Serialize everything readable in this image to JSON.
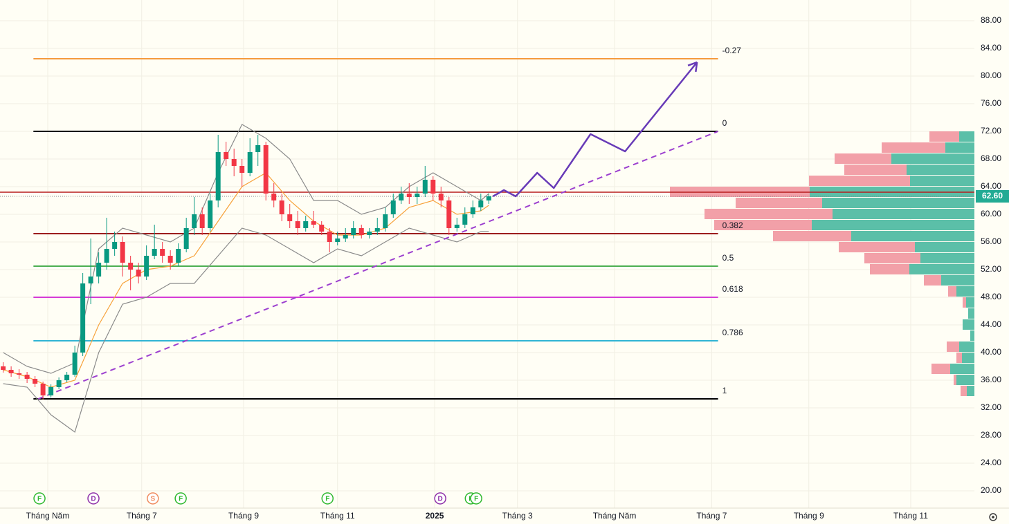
{
  "chart_data": {
    "type": "candlestick",
    "xlim": [
      0,
      612
    ],
    "ylim": [
      17.5,
      91
    ],
    "xticks": [
      {
        "value": 30,
        "label": "Tháng Năm"
      },
      {
        "value": 89,
        "label": "Tháng 7"
      },
      {
        "value": 153,
        "label": "Tháng 9"
      },
      {
        "value": 212,
        "label": "Tháng 11"
      },
      {
        "value": 273,
        "label": "2025"
      },
      {
        "value": 325,
        "label": "Tháng 3"
      },
      {
        "value": 386,
        "label": "Tháng Năm"
      },
      {
        "value": 447,
        "label": "Tháng 7"
      },
      {
        "value": 508,
        "label": "Tháng 9"
      },
      {
        "value": 572,
        "label": "Tháng 11"
      }
    ],
    "yticks": [
      {
        "value": 88,
        "label": "88.00"
      },
      {
        "value": 84,
        "label": "84.00"
      },
      {
        "value": 80,
        "label": "80.00"
      },
      {
        "value": 76,
        "label": "76.00"
      },
      {
        "value": 72,
        "label": "72.00"
      },
      {
        "value": 68,
        "label": "68.00"
      },
      {
        "value": 64,
        "label": "64.00"
      },
      {
        "value": 60,
        "label": "60.00"
      },
      {
        "value": 56,
        "label": "56.00"
      },
      {
        "value": 52,
        "label": "52.00"
      },
      {
        "value": 48,
        "label": "48.00"
      },
      {
        "value": 44,
        "label": "44.00"
      },
      {
        "value": 40,
        "label": "40.00"
      },
      {
        "value": 36,
        "label": "36.00"
      },
      {
        "value": 32,
        "label": "32.00"
      },
      {
        "value": 28,
        "label": "28.00"
      },
      {
        "value": 24,
        "label": "24.00"
      },
      {
        "value": 20,
        "label": "20.00"
      }
    ],
    "grid": true,
    "up_color": "#089981",
    "down_color": "#f23645",
    "x": [
      2,
      7,
      12,
      17,
      22,
      27,
      32,
      37,
      42,
      47,
      52,
      57,
      62,
      67,
      72,
      77,
      82,
      87,
      92,
      97,
      102,
      107,
      112,
      117,
      122,
      127,
      132,
      137,
      142,
      147,
      152,
      157,
      162,
      167,
      172,
      177,
      182,
      187,
      192,
      197,
      202,
      207,
      212,
      217,
      222,
      227,
      232,
      237,
      242,
      247,
      252,
      257,
      262,
      267,
      272,
      277,
      282,
      287,
      292,
      297,
      302,
      307
    ],
    "open": [
      38,
      37.5,
      37,
      36.8,
      36.2,
      35.5,
      33.8,
      35,
      36,
      36.8,
      40,
      50,
      51,
      53,
      55,
      56,
      53,
      52,
      51,
      54,
      55,
      54,
      53,
      55,
      58,
      60,
      58,
      62,
      69,
      68,
      67,
      66,
      69,
      70,
      63,
      62,
      60,
      59,
      58,
      59,
      58.5,
      57.5,
      56,
      56.5,
      57,
      58,
      57,
      57.5,
      58,
      60,
      62,
      63,
      62.5,
      63,
      65,
      63,
      62,
      58,
      58.5,
      60,
      61,
      62
    ],
    "high": [
      38.6,
      38,
      37.6,
      37.2,
      36.6,
      35.8,
      35.4,
      36.4,
      37.2,
      41,
      51.5,
      56.5,
      54.5,
      59.5,
      57.5,
      56.8,
      54,
      53,
      55.5,
      58.5,
      56,
      54.8,
      55.8,
      59.5,
      62.5,
      61,
      63,
      71.5,
      70.5,
      69.5,
      68,
      71,
      71.5,
      70.5,
      64.5,
      63,
      61.5,
      60.5,
      59.8,
      60.5,
      59,
      58,
      57.5,
      58,
      59,
      58.5,
      58,
      59.5,
      61,
      63,
      64,
      64.5,
      64,
      67,
      65.5,
      64,
      62.5,
      59.5,
      61,
      62,
      63,
      63
    ],
    "low": [
      37.1,
      36.5,
      36.2,
      35.6,
      35,
      33.2,
      33.5,
      34.7,
      35.7,
      36.5,
      39.5,
      47,
      50,
      52,
      54,
      51,
      49,
      50,
      50.5,
      53.5,
      53,
      52,
      52.5,
      54.5,
      57,
      57,
      57.5,
      61,
      67,
      65.5,
      64,
      65.5,
      67,
      62,
      61,
      59,
      58,
      57,
      57.5,
      58,
      57,
      54.5,
      55.5,
      56,
      56.5,
      56.5,
      56.5,
      57,
      57.5,
      59.5,
      61.5,
      61.5,
      61.5,
      62.5,
      62,
      61,
      57,
      57.5,
      58,
      59.5,
      60.5,
      61.5
    ],
    "close": [
      37.5,
      37,
      36.8,
      36.2,
      35.5,
      33.8,
      35,
      36,
      36.8,
      40,
      50,
      51,
      53,
      55,
      56,
      53,
      52,
      51,
      54,
      55,
      54,
      53,
      55,
      58,
      60,
      58,
      62,
      69,
      68,
      67,
      66,
      69,
      70,
      63,
      62,
      60,
      59,
      58,
      59,
      58.5,
      57.5,
      56,
      56.5,
      57,
      58,
      57,
      57.5,
      58,
      60,
      62,
      63,
      62.5,
      63,
      65,
      63,
      62,
      58,
      58.5,
      60,
      61,
      62,
      62.6
    ],
    "indicators": [
      {
        "color": "#f7a23b",
        "x": [
          2,
          17,
          32,
          47,
          62,
          77,
          92,
          107,
          122,
          137,
          152,
          167,
          182,
          197,
          212,
          227,
          242,
          257,
          272,
          287,
          302,
          307
        ],
        "values": [
          37.5,
          36.5,
          35,
          36,
          44,
          50,
          52,
          52.5,
          54,
          59,
          64,
          66,
          62,
          59,
          57,
          57,
          58,
          61,
          62,
          60,
          60.5,
          61.3
        ]
      },
      {
        "color": "#8a8a8a",
        "x": [
          2,
          17,
          32,
          47,
          62,
          77,
          92,
          107,
          122,
          137,
          152,
          167,
          182,
          197,
          212,
          227,
          242,
          257,
          272,
          287,
          302,
          307
        ],
        "values": [
          40,
          38,
          37,
          38.5,
          55,
          58,
          57,
          56,
          58,
          66,
          73,
          71,
          68,
          62,
          62,
          60,
          61,
          64,
          66,
          64,
          62,
          63
        ]
      },
      {
        "color": "#8a8a8a",
        "x": [
          2,
          17,
          32,
          47,
          62,
          77,
          92,
          107,
          122,
          137,
          152,
          167,
          182,
          197,
          212,
          227,
          242,
          257,
          272,
          287,
          302,
          307
        ],
        "values": [
          35.5,
          35,
          31,
          28.5,
          40,
          47,
          48,
          50,
          50,
          54,
          58,
          57,
          55,
          53,
          55,
          54,
          56,
          58,
          57,
          56,
          57.5,
          57.5
        ]
      }
    ],
    "fib_x": [
      21,
      451
    ],
    "fib_levels": [
      {
        "label": "-0.27",
        "price": 82.5,
        "color": "#f59a3c"
      },
      {
        "label": "0",
        "price": 72,
        "color": "#000000"
      },
      {
        "label": "0.382",
        "price": 57.2,
        "color": "#9c1c1c"
      },
      {
        "label": "0.5",
        "price": 52.5,
        "color": "#4caf50"
      },
      {
        "label": "0.618",
        "price": 48,
        "color": "#d63ad6"
      },
      {
        "label": "0.786",
        "price": 41.7,
        "color": "#2fb4d4"
      },
      {
        "label": "1",
        "price": 33.3,
        "color": "#000000"
      }
    ],
    "resistance": {
      "value": 63.2,
      "color": "#b71c1c"
    },
    "last_price": {
      "value": 62.6,
      "label": "62.60",
      "color": "#22ab94"
    },
    "trendline": {
      "color": "#9c3fcf",
      "x": [
        24,
        451
      ],
      "values": [
        33.3,
        72
      ]
    },
    "projection": {
      "color": "#673ab7",
      "x": [
        309.6,
        316.5,
        323.9,
        337.4,
        347.8,
        370.9,
        392.6,
        437.8
      ],
      "values": [
        62.6,
        63.5,
        62.6,
        66,
        63.8,
        71.6,
        69.1,
        82
      ]
    },
    "volume_profile": {
      "up_color": "#5bbfa8",
      "down_color": "#f2a0a8",
      "bins": [
        72,
        70.4,
        68.8,
        67.2,
        65.6,
        64,
        62.4,
        60.8,
        59.2,
        57.6,
        56,
        54.4,
        52.8,
        51.2,
        49.6,
        48,
        46.4,
        44.8,
        43.2,
        41.6,
        40,
        38.4,
        36.8,
        35.2,
        33.6
      ],
      "up": [
        22,
        42,
        120,
        98,
        93,
        238,
        220,
        205,
        235,
        178,
        86,
        78,
        94,
        48,
        26,
        12,
        9,
        17,
        6,
        22,
        18,
        35,
        26,
        11
      ],
      "down": [
        43,
        92,
        82,
        90,
        146,
        202,
        125,
        185,
        141,
        113,
        110,
        81,
        57,
        25,
        12,
        5,
        0,
        0,
        0,
        18,
        8,
        27,
        4,
        9
      ]
    },
    "events": [
      {
        "label": "F",
        "x": 24.8,
        "color": "#2db82d"
      },
      {
        "label": "D",
        "x": 58.7,
        "color": "#8e2fa8"
      },
      {
        "label": "S",
        "x": 96,
        "color": "#f08a5d"
      },
      {
        "label": "F",
        "x": 113.5,
        "color": "#2db82d"
      },
      {
        "label": "F",
        "x": 205.7,
        "color": "#2db82d"
      },
      {
        "label": "D",
        "x": 276.5,
        "color": "#8e2fa8"
      },
      {
        "label": "F",
        "x": 295.7,
        "color": "#2db82d"
      },
      {
        "label": "F",
        "x": 299.1,
        "color": "#2db82d"
      }
    ]
  }
}
